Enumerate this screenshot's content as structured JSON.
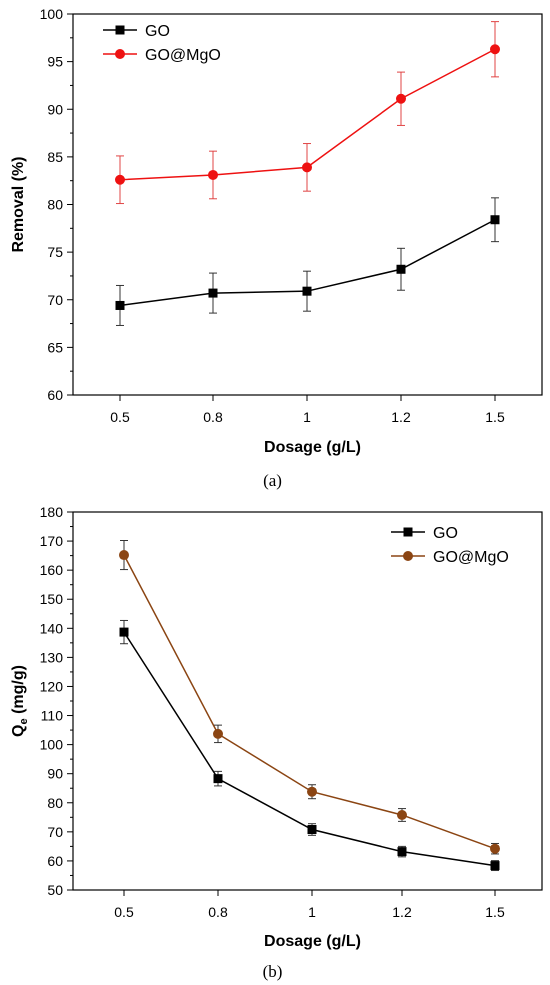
{
  "chart_data": [
    {
      "type": "line",
      "caption": "(a)",
      "xlabel": "Dosage (g/L)",
      "ylabel": "Removal (%)",
      "categories": [
        "0.5",
        "0.8",
        "1",
        "1.2",
        "1.5"
      ],
      "ylim": [
        60,
        100
      ],
      "yticks": [
        60,
        65,
        70,
        75,
        80,
        85,
        90,
        95,
        100
      ],
      "legend_position": "top-left",
      "series": [
        {
          "name": "GO",
          "color": "#000000",
          "marker": "square",
          "values": [
            69.4,
            70.7,
            70.9,
            73.2,
            78.4
          ],
          "errors": [
            2.1,
            2.1,
            2.1,
            2.2,
            2.3
          ]
        },
        {
          "name": "GO@MgO",
          "color": "#ee1111",
          "marker": "circle",
          "values": [
            82.6,
            83.1,
            83.9,
            91.1,
            96.3
          ],
          "errors": [
            2.5,
            2.5,
            2.5,
            2.8,
            2.9
          ]
        }
      ]
    },
    {
      "type": "line",
      "caption": "(b)",
      "xlabel": "Dosage (g/L)",
      "ylabel_main": "Q",
      "ylabel_sub": "e",
      "ylabel_rest": " (mg/g)",
      "categories": [
        "0.5",
        "0.8",
        "1",
        "1.2",
        "1.5"
      ],
      "ylim": [
        50,
        180
      ],
      "yticks": [
        50,
        60,
        70,
        80,
        90,
        100,
        110,
        120,
        130,
        140,
        150,
        160,
        170,
        180
      ],
      "legend_position": "top-right",
      "series": [
        {
          "name": "GO",
          "color": "#000000",
          "marker": "square",
          "values": [
            138.7,
            88.3,
            70.8,
            63.2,
            58.4
          ],
          "errors": [
            4.0,
            2.5,
            2.0,
            1.8,
            1.7
          ]
        },
        {
          "name": "GO@MgO",
          "color": "#8b4513",
          "marker": "circle",
          "values": [
            165.2,
            103.7,
            83.8,
            75.8,
            64.2
          ],
          "errors": [
            5.0,
            3.0,
            2.4,
            2.2,
            1.8
          ]
        }
      ]
    }
  ]
}
